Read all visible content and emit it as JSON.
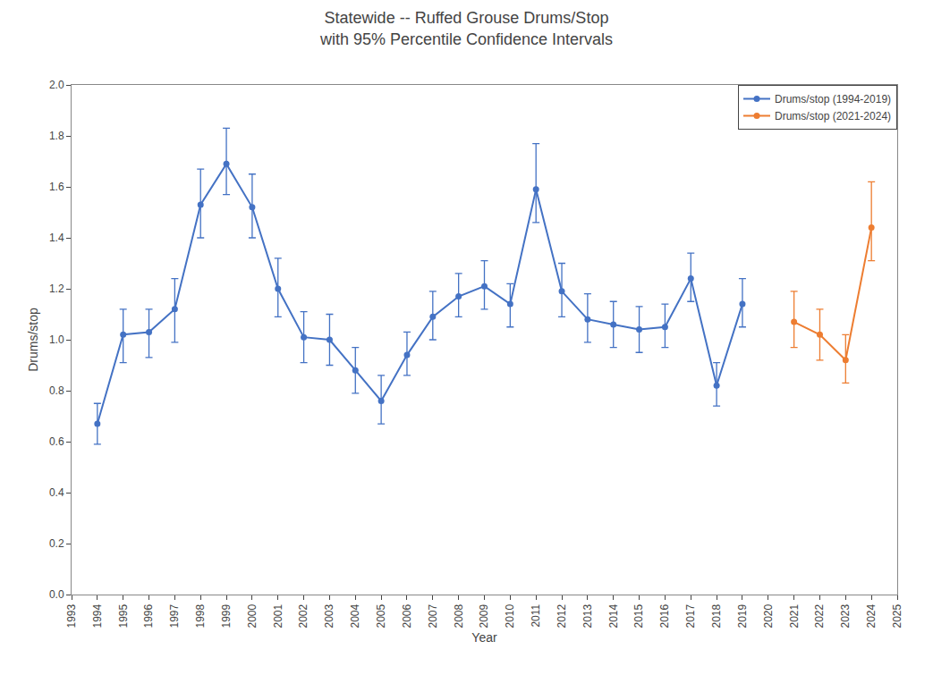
{
  "chart_data": {
    "type": "line",
    "title": "Statewide -- Ruffed Grouse Drums/Stop",
    "subtitle": "with 95% Percentile Confidence Intervals",
    "x_label": "Year",
    "y_label": "Drums/stop",
    "xlim": [
      1993,
      2025
    ],
    "ylim": [
      0.0,
      2.0
    ],
    "xticks": [
      1993,
      1994,
      1995,
      1996,
      1997,
      1998,
      1999,
      2000,
      2001,
      2002,
      2003,
      2004,
      2005,
      2006,
      2007,
      2008,
      2009,
      2010,
      2011,
      2012,
      2013,
      2014,
      2015,
      2016,
      2017,
      2018,
      2019,
      2020,
      2021,
      2022,
      2023,
      2024,
      2025
    ],
    "yticks": [
      {
        "value": 0.0,
        "label": "0.0"
      },
      0.2,
      0.4,
      0.6,
      0.8,
      {
        "value": 1.0,
        "label": "1.0"
      },
      1.2,
      1.4,
      1.6,
      1.8,
      {
        "value": 2.0,
        "label": "2.0"
      }
    ],
    "grid": false,
    "legend": "upper right",
    "marker": "circle",
    "series": [
      {
        "name": "Drums/stop (1994-2019)",
        "color": "#4472C4",
        "x": [
          1994,
          1995,
          1996,
          1997,
          1998,
          1999,
          2000,
          2001,
          2002,
          2003,
          2004,
          2005,
          2006,
          2007,
          2008,
          2009,
          2010,
          2011,
          2012,
          2013,
          2014,
          2015,
          2016,
          2017,
          2018,
          2019
        ],
        "values": [
          0.67,
          1.02,
          1.03,
          1.12,
          1.53,
          1.69,
          1.52,
          1.2,
          1.01,
          1.0,
          0.88,
          0.76,
          0.94,
          1.09,
          1.17,
          1.21,
          1.14,
          1.59,
          1.19,
          1.08,
          1.06,
          1.04,
          1.05,
          1.24,
          0.82,
          1.14
        ],
        "error_lo": [
          0.08,
          0.11,
          0.1,
          0.13,
          0.13,
          0.12,
          0.12,
          0.11,
          0.1,
          0.1,
          0.09,
          0.09,
          0.08,
          0.09,
          0.08,
          0.09,
          0.09,
          0.13,
          0.1,
          0.09,
          0.09,
          0.09,
          0.08,
          0.09,
          0.08,
          0.09
        ],
        "error_hi": [
          0.08,
          0.1,
          0.09,
          0.12,
          0.14,
          0.14,
          0.13,
          0.12,
          0.1,
          0.1,
          0.09,
          0.1,
          0.09,
          0.1,
          0.09,
          0.1,
          0.08,
          0.18,
          0.11,
          0.1,
          0.09,
          0.09,
          0.09,
          0.1,
          0.09,
          0.1
        ]
      },
      {
        "name": "Drums/stop (2021-2024)",
        "color": "#ED7D31",
        "x": [
          2021,
          2022,
          2023,
          2024
        ],
        "values": [
          1.07,
          1.02,
          0.92,
          1.44
        ],
        "error_lo": [
          0.1,
          0.1,
          0.09,
          0.13
        ],
        "error_hi": [
          0.12,
          0.1,
          0.1,
          0.18
        ]
      }
    ]
  }
}
